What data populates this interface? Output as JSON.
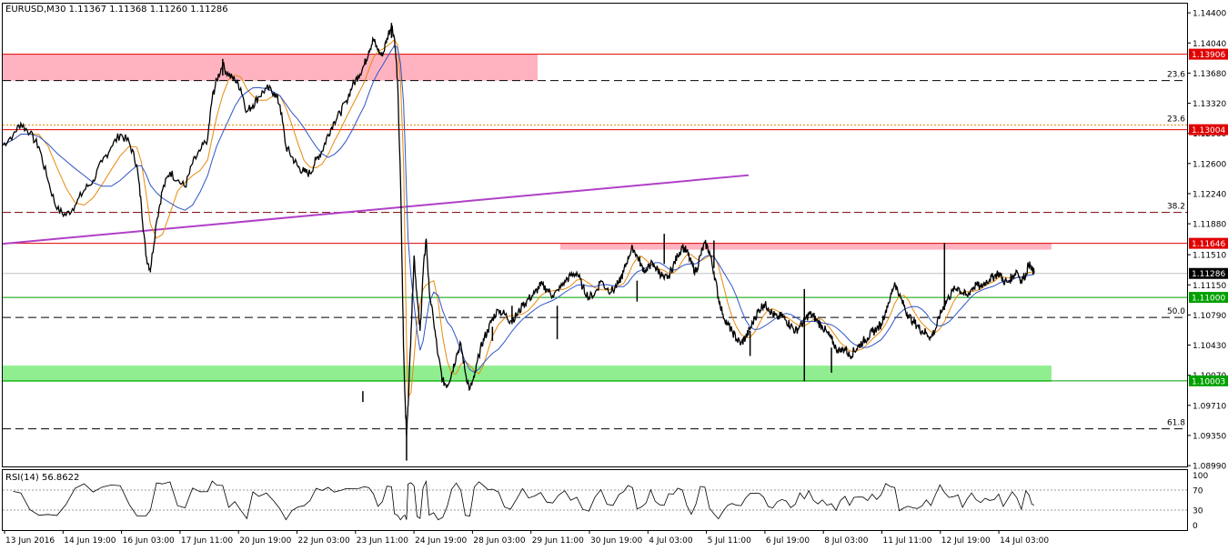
{
  "chart_title": "EURUSD,M30  1.11367 1.11368 1.11260 1.11286",
  "rsi_title": "RSI(14) 56.8622",
  "colors": {
    "price": "#000000",
    "ma_fast": "#e8890c",
    "ma_slow": "#2f55c8",
    "resistance": "#e00000",
    "support": "#00a000",
    "trend": "#b040c8",
    "resist_zone": "#ffb3c0",
    "support_zone": "#90ee90",
    "fib": "#000000",
    "tag_red": "#e00000",
    "tag_green": "#00a000",
    "tag_black": "#000000"
  },
  "chart_data": {
    "type": "line",
    "symbol": "EURUSD",
    "timeframe": "M30",
    "ylim": [
      1.0898,
      1.1451
    ],
    "y_ticks": [
      "1.14400",
      "1.14040",
      "1.13680",
      "1.13320",
      "1.12960",
      "1.12600",
      "1.12240",
      "1.11880",
      "1.11510",
      "1.11150",
      "1.10790",
      "1.10430",
      "1.10070",
      "1.09710",
      "1.09350",
      "1.08990"
    ],
    "x_ticks": [
      "13 Jun 2016",
      "14 Jun 19:00",
      "16 Jun 03:00",
      "17 Jun 11:00",
      "20 Jun 19:00",
      "22 Jun 03:00",
      "23 Jun 11:00",
      "24 Jun 19:00",
      "28 Jun 03:00",
      "29 Jun 11:00",
      "30 Jun 19:00",
      "4 Jul 03:00",
      "5 Jul 11:00",
      "6 Jul 19:00",
      "8 Jul 03:00",
      "11 Jul 11:00",
      "12 Jul 19:00",
      "14 Jul 03:00"
    ],
    "price_path": [
      [
        0,
        1.1282
      ],
      [
        0.7,
        1.1295
      ],
      [
        1.2,
        1.1308
      ],
      [
        1.8,
        1.1296
      ],
      [
        2.4,
        1.128
      ],
      [
        3.0,
        1.124
      ],
      [
        3.6,
        1.1205
      ],
      [
        4.2,
        1.1198
      ],
      [
        4.8,
        1.121
      ],
      [
        5.4,
        1.1228
      ],
      [
        6.0,
        1.124
      ],
      [
        6.6,
        1.1262
      ],
      [
        7.2,
        1.128
      ],
      [
        7.8,
        1.1295
      ],
      [
        8.4,
        1.1285
      ],
      [
        8.9,
        1.1258
      ],
      [
        9.2,
        1.121
      ],
      [
        9.5,
        1.115
      ],
      [
        9.8,
        1.1133
      ],
      [
        10.2,
        1.119
      ],
      [
        10.6,
        1.1228
      ],
      [
        11.1,
        1.125
      ],
      [
        11.6,
        1.124
      ],
      [
        12.1,
        1.1232
      ],
      [
        12.6,
        1.126
      ],
      [
        13.1,
        1.1275
      ],
      [
        13.6,
        1.129
      ],
      [
        13.9,
        1.1338
      ],
      [
        14.2,
        1.136
      ],
      [
        14.6,
        1.1378
      ],
      [
        15.0,
        1.1365
      ],
      [
        15.4,
        1.136
      ],
      [
        15.8,
        1.135
      ],
      [
        16.2,
        1.1322
      ],
      [
        16.6,
        1.133
      ],
      [
        17.0,
        1.134
      ],
      [
        17.5,
        1.135
      ],
      [
        18.0,
        1.1345
      ],
      [
        18.4,
        1.133
      ],
      [
        18.8,
        1.128
      ],
      [
        19.2,
        1.1268
      ],
      [
        19.6,
        1.1256
      ],
      [
        20.0,
        1.125
      ],
      [
        20.4,
        1.1248
      ],
      [
        20.8,
        1.1265
      ],
      [
        21.2,
        1.1275
      ],
      [
        21.6,
        1.1295
      ],
      [
        22.0,
        1.131
      ],
      [
        22.4,
        1.132
      ],
      [
        22.8,
        1.1335
      ],
      [
        23.2,
        1.1352
      ],
      [
        23.6,
        1.1365
      ],
      [
        24.0,
        1.1378
      ],
      [
        24.3,
        1.1395
      ],
      [
        24.6,
        1.1408
      ],
      [
        24.9,
        1.1395
      ],
      [
        25.2,
        1.1388
      ],
      [
        25.5,
        1.141
      ],
      [
        25.8,
        1.1425
      ],
      [
        26.0,
        1.141
      ],
      [
        26.2,
        1.136
      ],
      [
        26.4,
        1.124
      ],
      [
        26.6,
        1.104
      ],
      [
        26.7,
        1.098
      ],
      [
        26.8,
        1.0935
      ],
      [
        26.9,
        1.097
      ],
      [
        27.1,
        1.106
      ],
      [
        27.3,
        1.115
      ],
      [
        27.5,
        1.11
      ],
      [
        27.7,
        1.106
      ],
      [
        27.9,
        1.113
      ],
      [
        28.1,
        1.117
      ],
      [
        28.3,
        1.111
      ],
      [
        28.6,
        1.107
      ],
      [
        28.9,
        1.103
      ],
      [
        29.2,
        1.1
      ],
      [
        29.5,
        1.0995
      ],
      [
        29.8,
        1.101
      ],
      [
        30.1,
        1.103
      ],
      [
        30.4,
        1.1045
      ],
      [
        30.7,
        1.101
      ],
      [
        31.0,
        1.099
      ],
      [
        31.3,
        1.1005
      ],
      [
        31.6,
        1.103
      ],
      [
        31.9,
        1.105
      ],
      [
        32.2,
        1.106
      ],
      [
        32.5,
        1.1075
      ],
      [
        32.9,
        1.1085
      ],
      [
        33.3,
        1.108
      ],
      [
        33.7,
        1.1072
      ],
      [
        34.1,
        1.1078
      ],
      [
        34.5,
        1.109
      ],
      [
        34.9,
        1.1098
      ],
      [
        35.3,
        1.1105
      ],
      [
        35.7,
        1.1115
      ],
      [
        36.1,
        1.111
      ],
      [
        36.5,
        1.1102
      ],
      [
        36.9,
        1.1108
      ],
      [
        37.3,
        1.112
      ],
      [
        37.7,
        1.1125
      ],
      [
        38.1,
        1.113
      ],
      [
        38.5,
        1.1112
      ],
      [
        38.9,
        1.11
      ],
      [
        39.3,
        1.1105
      ],
      [
        39.7,
        1.112
      ],
      [
        40.1,
        1.111
      ],
      [
        40.5,
        1.1108
      ],
      [
        40.9,
        1.1118
      ],
      [
        41.2,
        1.113
      ],
      [
        41.5,
        1.1148
      ],
      [
        41.8,
        1.116
      ],
      [
        42.1,
        1.115
      ],
      [
        42.4,
        1.1138
      ],
      [
        42.7,
        1.113
      ],
      [
        43.0,
        1.114
      ],
      [
        43.3,
        1.1136
      ],
      [
        43.6,
        1.113
      ],
      [
        43.9,
        1.1122
      ],
      [
        44.2,
        1.1126
      ],
      [
        44.5,
        1.1138
      ],
      [
        44.8,
        1.115
      ],
      [
        45.1,
        1.116
      ],
      [
        45.4,
        1.1155
      ],
      [
        45.7,
        1.114
      ],
      [
        46.0,
        1.113
      ],
      [
        46.3,
        1.115
      ],
      [
        46.6,
        1.1165
      ],
      [
        46.9,
        1.1155
      ],
      [
        47.2,
        1.113
      ],
      [
        47.5,
        1.11
      ],
      [
        47.8,
        1.108
      ],
      [
        48.1,
        1.1068
      ],
      [
        48.4,
        1.106
      ],
      [
        48.7,
        1.105
      ],
      [
        49.0,
        1.1045
      ],
      [
        49.3,
        1.1052
      ],
      [
        49.6,
        1.1062
      ],
      [
        49.9,
        1.1075
      ],
      [
        50.2,
        1.1085
      ],
      [
        50.5,
        1.1092
      ],
      [
        50.8,
        1.1088
      ],
      [
        51.1,
        1.108
      ],
      [
        51.4,
        1.1076
      ],
      [
        51.7,
        1.1078
      ],
      [
        52.0,
        1.1072
      ],
      [
        52.3,
        1.1066
      ],
      [
        52.6,
        1.106
      ],
      [
        52.9,
        1.1065
      ],
      [
        53.2,
        1.1072
      ],
      [
        53.5,
        1.108
      ],
      [
        53.8,
        1.1078
      ],
      [
        54.1,
        1.107
      ],
      [
        54.4,
        1.1065
      ],
      [
        54.7,
        1.1058
      ],
      [
        55.0,
        1.105
      ],
      [
        55.3,
        1.104
      ],
      [
        55.6,
        1.1035
      ],
      [
        55.9,
        1.104
      ],
      [
        56.2,
        1.103
      ],
      [
        56.5,
        1.1036
      ],
      [
        56.8,
        1.1042
      ],
      [
        57.1,
        1.1048
      ],
      [
        57.4,
        1.1052
      ],
      [
        57.7,
        1.1058
      ],
      [
        58.0,
        1.1062
      ],
      [
        58.3,
        1.1068
      ],
      [
        58.6,
        1.1085
      ],
      [
        58.9,
        1.11
      ],
      [
        59.2,
        1.1118
      ],
      [
        59.5,
        1.1102
      ],
      [
        59.8,
        1.109
      ],
      [
        60.1,
        1.1078
      ],
      [
        60.4,
        1.1072
      ],
      [
        60.7,
        1.1066
      ],
      [
        61.0,
        1.106
      ],
      [
        61.3,
        1.1058
      ],
      [
        61.6,
        1.1052
      ],
      [
        61.9,
        1.1062
      ],
      [
        62.2,
        1.1078
      ],
      [
        62.5,
        1.1092
      ],
      [
        62.8,
        1.11
      ],
      [
        63.1,
        1.1108
      ],
      [
        63.4,
        1.1112
      ],
      [
        63.7,
        1.1105
      ],
      [
        64.0,
        1.1102
      ],
      [
        64.3,
        1.111
      ],
      [
        64.6,
        1.1115
      ],
      [
        64.9,
        1.1112
      ],
      [
        65.2,
        1.1118
      ],
      [
        65.5,
        1.1122
      ],
      [
        65.8,
        1.1125
      ],
      [
        66.1,
        1.113
      ],
      [
        66.4,
        1.112
      ],
      [
        66.7,
        1.1118
      ],
      [
        67.0,
        1.1125
      ],
      [
        67.3,
        1.1132
      ],
      [
        67.6,
        1.112
      ],
      [
        67.9,
        1.1128
      ],
      [
        68.1,
        1.114
      ],
      [
        68.3,
        1.1133
      ],
      [
        68.45,
        1.11286
      ]
    ],
    "price_wicks": [
      [
        9.8,
        1.1133,
        1.113
      ],
      [
        26.8,
        1.094,
        1.0905
      ],
      [
        25.8,
        1.141,
        1.1428
      ],
      [
        14.6,
        1.1365,
        1.1385
      ],
      [
        36.8,
        1.105,
        1.109
      ],
      [
        33.8,
        1.109,
        1.1068
      ],
      [
        43.9,
        1.114,
        1.1176
      ],
      [
        47.2,
        1.1135,
        1.1168
      ],
      [
        42.1,
        1.112,
        1.1095
      ],
      [
        53.2,
        1.1,
        1.111
      ],
      [
        55.0,
        1.101,
        1.104
      ],
      [
        62.5,
        1.1085,
        1.1165
      ],
      [
        49.6,
        1.103,
        1.106
      ],
      [
        23.9,
        1.0988,
        1.0975
      ],
      [
        32.5,
        1.1065,
        1.1048
      ]
    ],
    "rsi_ylim": [
      -10,
      110
    ],
    "rsi_levels": [
      70,
      30
    ],
    "rsi_ticks": [
      "100",
      "70",
      "30",
      "0"
    ],
    "horizontal_lines": [
      {
        "kind": "resistance",
        "price": 1.13906,
        "label": "1.13906"
      },
      {
        "kind": "resistance",
        "price": 1.13004,
        "label": "1.13004"
      },
      {
        "kind": "resistance",
        "price": 1.11646,
        "label": "1.11646"
      },
      {
        "kind": "support",
        "price": 1.11,
        "label": "1.11000"
      },
      {
        "kind": "support",
        "price": 1.10003,
        "label": "1.10003"
      },
      {
        "kind": "current",
        "price": 1.11286,
        "label": "1.11286"
      }
    ],
    "fib_levels": [
      {
        "level": "23.6",
        "price": 1.1359,
        "style": "dashed-black"
      },
      {
        "level": "23.6",
        "price": 1.1306,
        "style": "dotted-orange"
      },
      {
        "level": "38.2",
        "price": 1.12015,
        "style": "dashed-darkred"
      },
      {
        "level": "50.0",
        "price": 1.1076,
        "style": "dashed-black"
      },
      {
        "level": "61.8",
        "price": 1.0943,
        "style": "dashed-black"
      }
    ],
    "trendline": {
      "x1": 0,
      "y1": 1.1164,
      "x2": 49.5,
      "y2": 1.1246
    },
    "zones": [
      {
        "kind": "resist_zone",
        "x1": 0,
        "x2": 35.5,
        "y1": 1.1359,
        "y2": 1.13906
      },
      {
        "kind": "resist_zone",
        "x1": 37.0,
        "x2": 69.6,
        "y1": 1.1157,
        "y2": 1.11646
      },
      {
        "kind": "support_zone",
        "x1": 0,
        "x2": 69.6,
        "y1": 1.0999,
        "y2": 1.10185
      }
    ],
    "x_span": [
      0,
      78.6
    ]
  }
}
